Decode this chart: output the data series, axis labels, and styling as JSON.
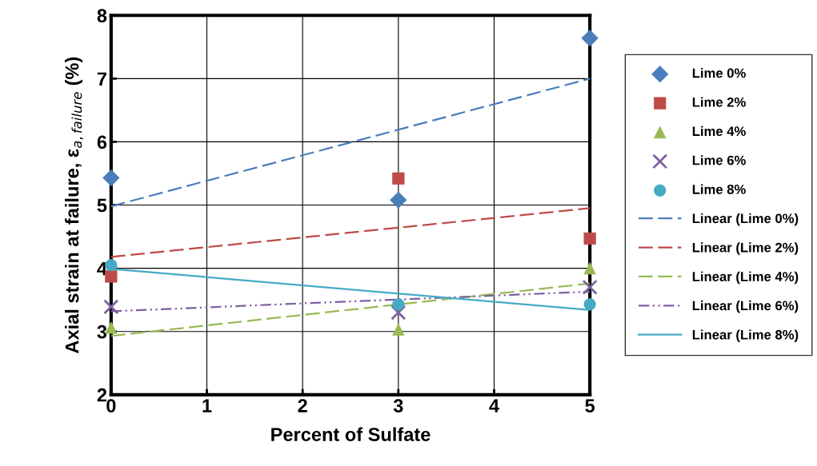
{
  "chart_data": {
    "type": "scatter",
    "xlabel": "Percent of Sulfate",
    "ylabel": "Axial strain at failure, ε$_{a,failure}$ (%)",
    "xlim": [
      0,
      5
    ],
    "xticks": [
      0,
      1,
      2,
      3,
      4,
      5
    ],
    "ylim": [
      2,
      8
    ],
    "yticks": [
      2,
      3,
      4,
      5,
      6,
      7,
      8
    ],
    "grid": true,
    "legend": "right",
    "series": [
      {
        "name": "Lime 0%",
        "color": "#4a7ebb",
        "marker": "diamond",
        "x": [
          0,
          3,
          5
        ],
        "values": [
          5.43,
          5.08,
          7.64
        ]
      },
      {
        "name": "Lime 2%",
        "color": "#be4b48",
        "marker": "square",
        "x": [
          0,
          3,
          5
        ],
        "values": [
          3.87,
          5.42,
          4.47
        ]
      },
      {
        "name": "Lime 4%",
        "color": "#98b954",
        "marker": "triangle",
        "x": [
          0,
          3,
          5
        ],
        "values": [
          3.06,
          3.03,
          4.0
        ]
      },
      {
        "name": "Lime 6%",
        "color": "#7d60a0",
        "marker": "cross",
        "x": [
          0,
          3,
          5
        ],
        "values": [
          3.39,
          3.3,
          3.7
        ]
      },
      {
        "name": "Lime 8%",
        "color": "#46aac5",
        "marker": "circle",
        "x": [
          0,
          3,
          5
        ],
        "values": [
          4.05,
          3.43,
          3.43
        ]
      },
      {
        "name": "Linear (Lime 0%)",
        "type": "line",
        "color": "#4a7ebb",
        "line_style": "dashed",
        "x": [
          0,
          5
        ],
        "values": [
          4.98,
          7.0
        ]
      },
      {
        "name": "Linear (Lime 2%)",
        "type": "line",
        "color": "#be4b48",
        "line_style": "dashed",
        "x": [
          0,
          5
        ],
        "values": [
          4.18,
          4.95
        ]
      },
      {
        "name": "Linear (Lime 4%)",
        "type": "line",
        "color": "#98b954",
        "line_style": "dashed",
        "x": [
          0,
          5
        ],
        "values": [
          2.93,
          3.76
        ]
      },
      {
        "name": "Linear (Lime 6%)",
        "type": "line",
        "color": "#7d60a0",
        "line_style": "dotted",
        "x": [
          0,
          5
        ],
        "values": [
          3.32,
          3.63
        ]
      },
      {
        "name": "Linear (Lime 8%)",
        "type": "line",
        "color": "#46aac5",
        "line_style": "solid",
        "x": [
          0,
          5
        ],
        "values": [
          3.99,
          3.34
        ]
      }
    ]
  }
}
